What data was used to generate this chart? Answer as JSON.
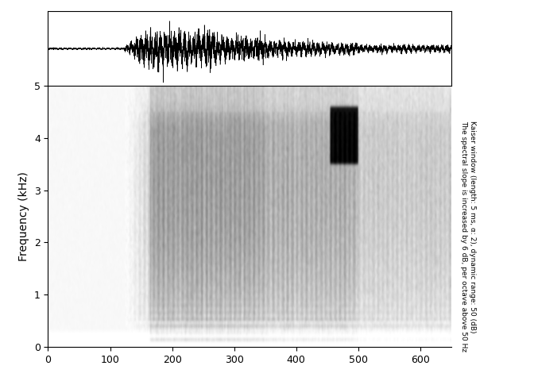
{
  "ylabel_spectrogram": "Frequency (kHz)",
  "annotation_line1": "Kaiser window (length: 5 ms, α: 2), dynamic range: 50 (dB)",
  "annotation_line2": "The spectral slope is increased by 6 dB, per octave above 50 Hz",
  "x_ticks": [
    0,
    100,
    200,
    300,
    400,
    500,
    600
  ],
  "y_ticks_spec": [
    0,
    1,
    2,
    3,
    4,
    5
  ],
  "x_max": 650,
  "spec_y_max": 5.0,
  "background_color": "#ffffff",
  "waveform_color": "#000000",
  "fig_width": 6.72,
  "fig_height": 4.8,
  "dpi": 100
}
